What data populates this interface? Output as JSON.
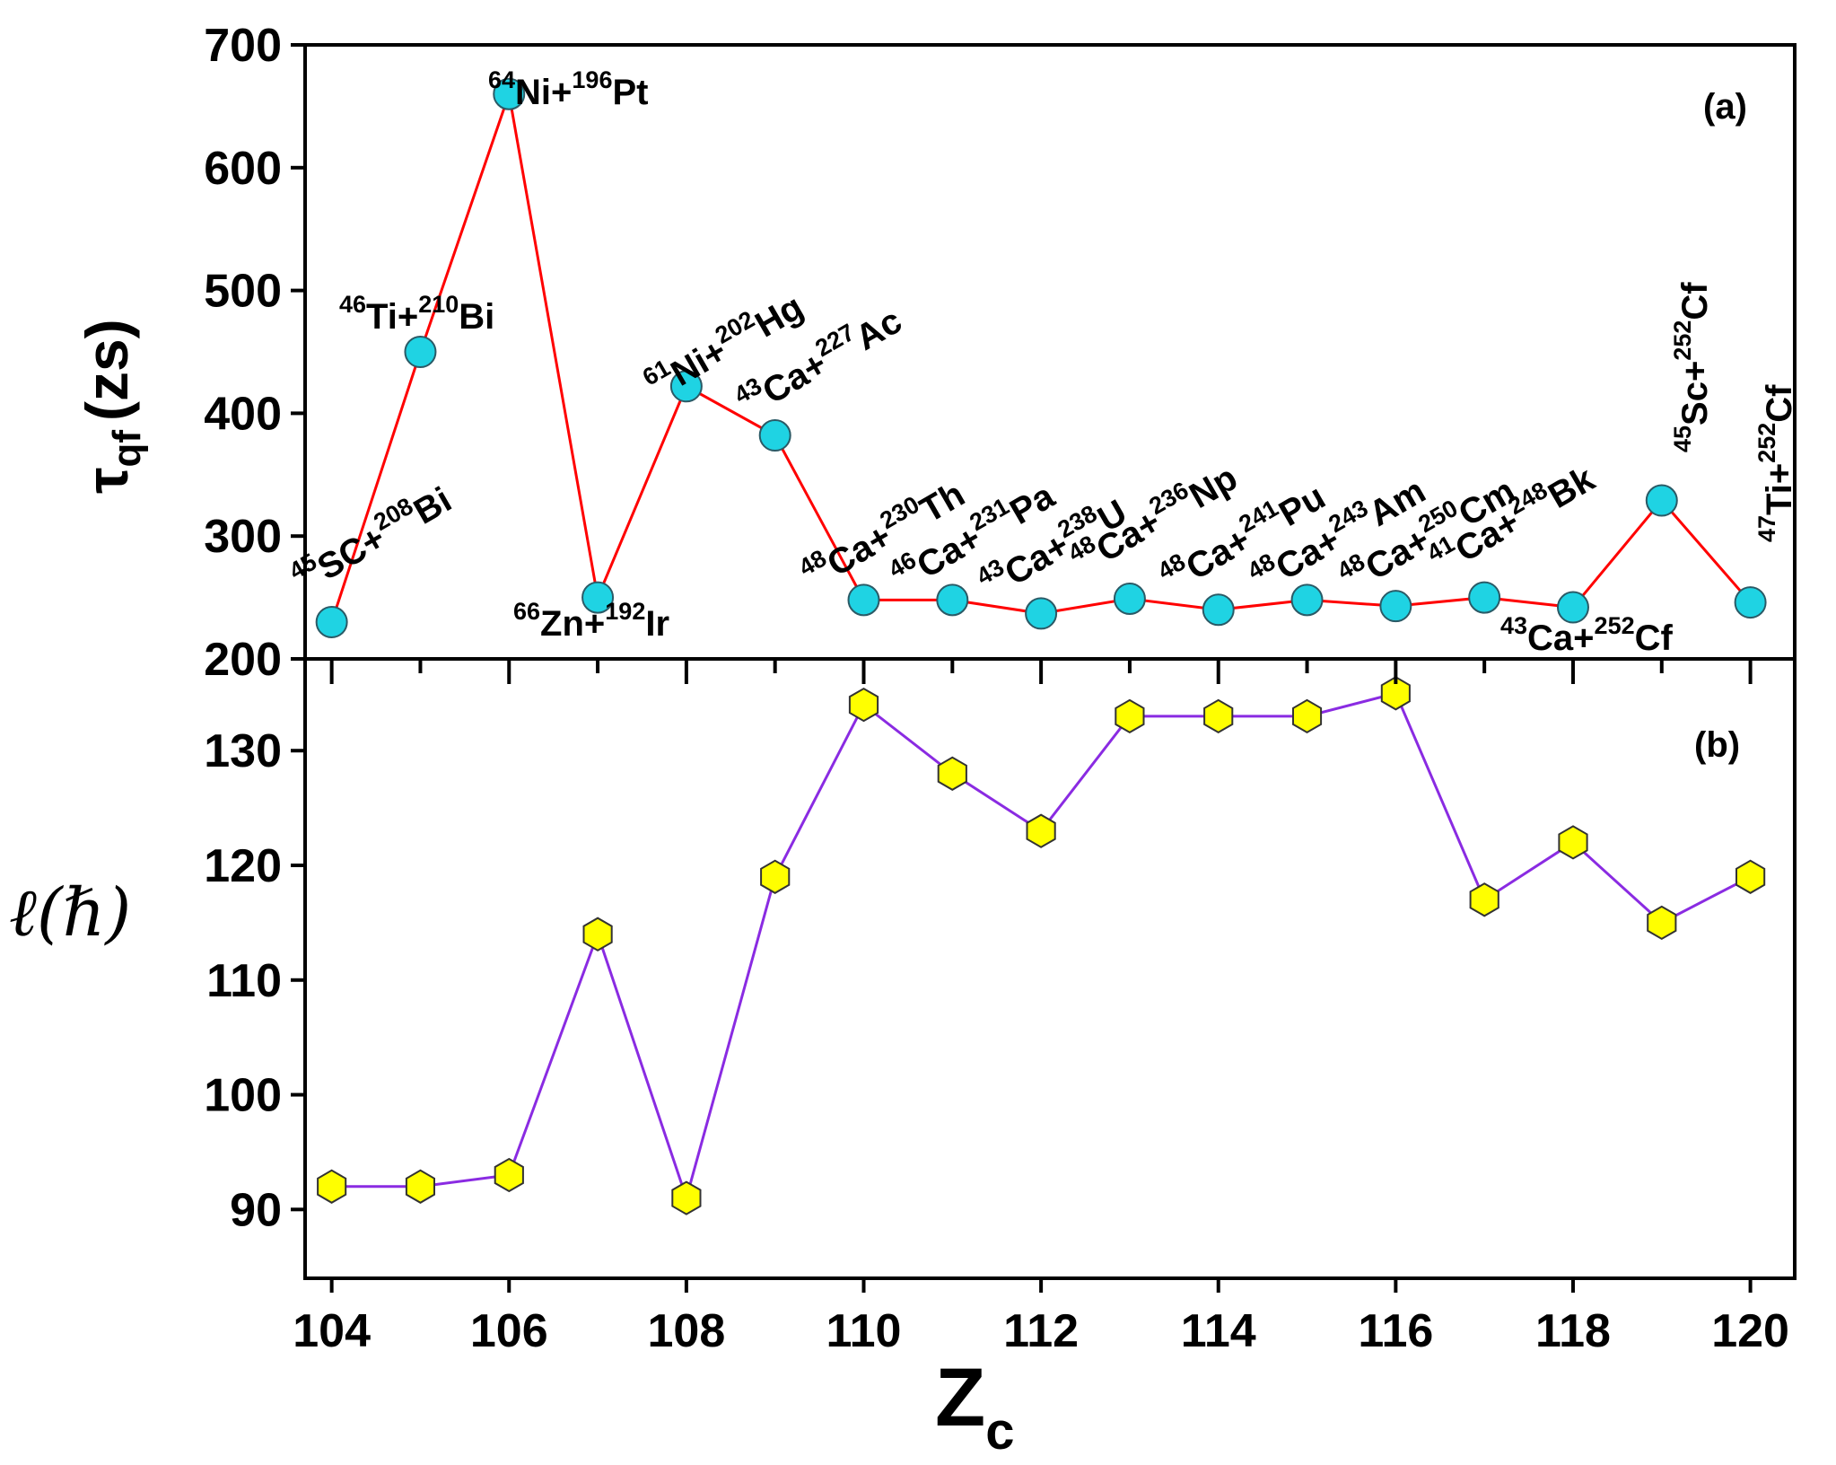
{
  "chart_data": [
    {
      "panel": "(a)",
      "type": "line",
      "ylabel_symbol": "τ",
      "ylabel_subscript": "qf",
      "ylabel_unit": "(zs)",
      "ylim": [
        200,
        700
      ],
      "yticks": [
        200,
        300,
        400,
        500,
        600,
        700
      ],
      "x": [
        104,
        105,
        106,
        107,
        108,
        109,
        110,
        111,
        112,
        113,
        114,
        115,
        116,
        117,
        118,
        119,
        120
      ],
      "values": [
        230,
        450,
        660,
        250,
        422,
        382,
        248,
        248,
        237,
        249,
        240,
        248,
        243,
        250,
        242,
        329,
        246
      ],
      "line_color": "#ff0000",
      "marker": "circle",
      "marker_color": "#1fd3e3",
      "reactions": [
        {
          "sup1": "45",
          "p1": "SC+",
          "sup2": "208",
          "p2": "Bi"
        },
        {
          "sup1": "46",
          "p1": "Ti+",
          "sup2": "210",
          "p2": "Bi"
        },
        {
          "sup1": "64",
          "p1": "Ni+",
          "sup2": "196",
          "p2": "Pt"
        },
        {
          "sup1": "66",
          "p1": "Zn+",
          "sup2": "192",
          "p2": "Ir"
        },
        {
          "sup1": "61",
          "p1": "Ni+",
          "sup2": "202",
          "p2": "Hg"
        },
        {
          "sup1": "43",
          "p1": "Ca+",
          "sup2": "227",
          "p2": "Ac"
        },
        {
          "sup1": "48",
          "p1": "Ca+",
          "sup2": "230",
          "p2": "Th"
        },
        {
          "sup1": "46",
          "p1": "Ca+",
          "sup2": "231",
          "p2": "Pa"
        },
        {
          "sup1": "43",
          "p1": "Ca+",
          "sup2": "238",
          "p2": "U"
        },
        {
          "sup1": "48",
          "p1": "Ca+",
          "sup2": "236",
          "p2": "Np"
        },
        {
          "sup1": "48",
          "p1": "Ca+",
          "sup2": "241",
          "p2": "Pu"
        },
        {
          "sup1": "48",
          "p1": "Ca+",
          "sup2": "243",
          "p2": "Am"
        },
        {
          "sup1": "48",
          "p1": "Ca+",
          "sup2": "250",
          "p2": "Cm"
        },
        {
          "sup1": "41",
          "p1": "Ca+",
          "sup2": "248",
          "p2": "Bk"
        },
        {
          "sup1": "43",
          "p1": "Ca+",
          "sup2": "252",
          "p2": "Cf"
        },
        {
          "sup1": "45",
          "p1": "Sc+",
          "sup2": "252",
          "p2": "Cf"
        },
        {
          "sup1": "47",
          "p1": "Ti+",
          "sup2": "252",
          "p2": "Cf"
        }
      ]
    },
    {
      "panel": "(b)",
      "type": "line",
      "ylabel": "ℓ(ℏ)",
      "ylim": [
        84,
        138
      ],
      "yticks": [
        90,
        100,
        110,
        120,
        130
      ],
      "x": [
        104,
        105,
        106,
        107,
        108,
        109,
        110,
        111,
        112,
        113,
        114,
        115,
        116,
        117,
        118,
        119,
        120
      ],
      "values": [
        92,
        92,
        93,
        114,
        91,
        119,
        134,
        128,
        123,
        133,
        133,
        133,
        135,
        117,
        122,
        115,
        119
      ],
      "line_color": "#8a2be2",
      "marker": "hexagon",
      "marker_color": "#ffff00",
      "xlabel_main": "Z",
      "xlabel_subscript": "c",
      "xlim": [
        103.7,
        120.5
      ],
      "xticks": [
        104,
        106,
        108,
        110,
        112,
        114,
        116,
        118,
        120
      ]
    }
  ]
}
